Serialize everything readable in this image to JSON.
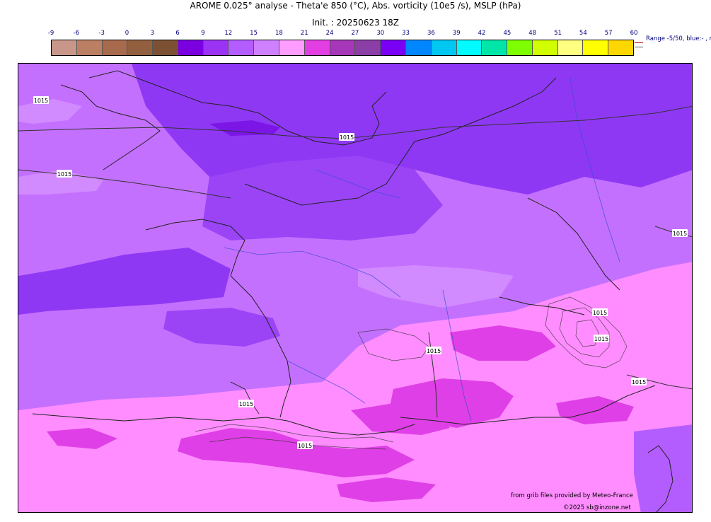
{
  "header": {
    "title": "AROME 0.025° analyse - Theta'e 850 (°C), Abs. vorticity (10e5 /s), MSLP (hPa)",
    "init": "Init. : 20250623 18Z"
  },
  "colorbar": {
    "ticks": [
      "-9",
      "-6",
      "-3",
      "0",
      "3",
      "6",
      "9",
      "12",
      "15",
      "18",
      "21",
      "24",
      "27",
      "30",
      "33",
      "36",
      "39",
      "42",
      "45",
      "48",
      "51",
      "54",
      "57",
      "60"
    ],
    "colors": [
      "#c9978a",
      "#bb8063",
      "#a86a4c",
      "#93603f",
      "#7c5033",
      "#7b00e0",
      "#9b33f5",
      "#b35cff",
      "#cf80ff",
      "#ff9cff",
      "#e23ee2",
      "#a637b8",
      "#8a3ea6",
      "#7a00f5",
      "#0086ff",
      "#00c7f2",
      "#00fcff",
      "#00e6a8",
      "#7dff00",
      "#d1ff00",
      "#ffff80",
      "#ffff00",
      "#ffd700"
    ],
    "range_note": "Range -5/50, blue:- , r"
  },
  "map": {
    "isobar_label": "1015",
    "fill_colors": {
      "base": "#c470ff",
      "deep": "#8f38f4",
      "darkest": "#7c16e6",
      "light": "#d28aff",
      "pink": "#ff8dff",
      "magenta": "#df3fe6",
      "sea": "#b45dff"
    }
  },
  "credits": {
    "source": "from grib files provided by Meteo-France",
    "copyright": "©2025 sb@inzone.net"
  }
}
